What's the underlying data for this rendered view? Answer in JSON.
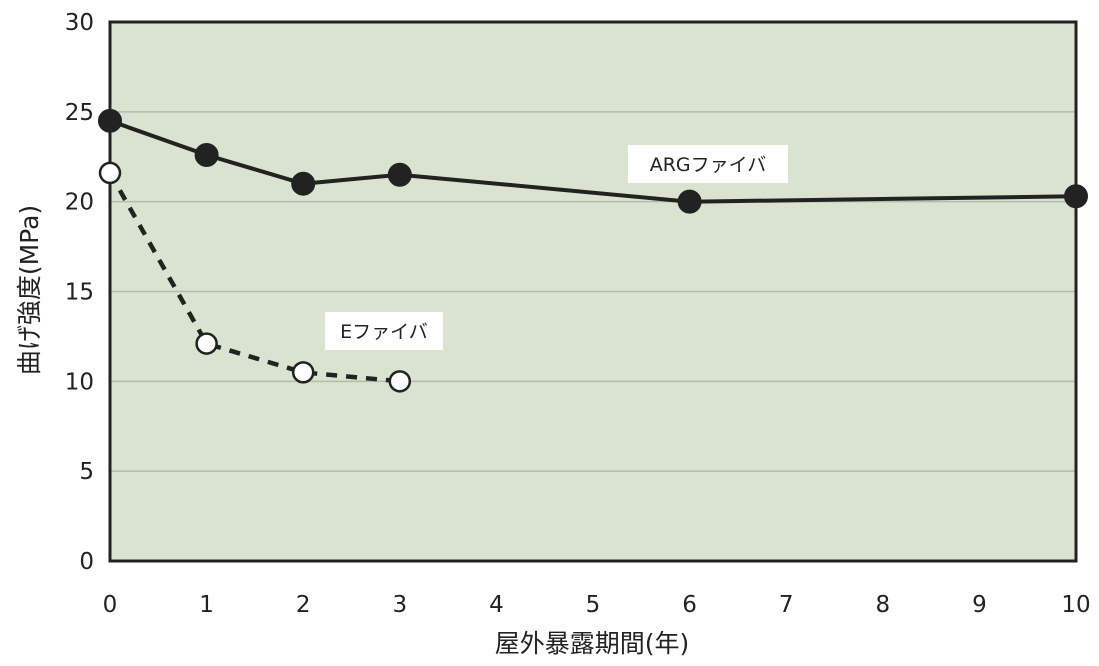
{
  "chart_data": {
    "type": "line",
    "xlabel": "屋外暴露期間(年)",
    "ylabel": "曲げ強度(MPa)",
    "xlim": [
      0,
      10
    ],
    "ylim": [
      0,
      30
    ],
    "x_ticks": [
      "0",
      "1",
      "2",
      "3",
      "4",
      "5",
      "6",
      "7",
      "8",
      "9",
      "10"
    ],
    "y_ticks": [
      "0",
      "5",
      "10",
      "15",
      "20",
      "25",
      "30"
    ],
    "grid": true,
    "colors": {
      "plot_background": "#d9e3cf",
      "grid": "#b3bba9",
      "line": "#222222"
    },
    "series": [
      {
        "name": "ARGファイバ",
        "style": "solid",
        "marker": "filled-circle",
        "points": [
          {
            "x": 0,
            "y": 24.5
          },
          {
            "x": 1,
            "y": 22.6
          },
          {
            "x": 2,
            "y": 21.0
          },
          {
            "x": 3,
            "y": 21.5
          },
          {
            "x": 6,
            "y": 20.0
          },
          {
            "x": 10,
            "y": 20.3
          }
        ]
      },
      {
        "name": "Eファイバ",
        "style": "dashed",
        "marker": "open-circle",
        "points": [
          {
            "x": 0,
            "y": 21.6
          },
          {
            "x": 1,
            "y": 12.1
          },
          {
            "x": 2,
            "y": 10.5
          },
          {
            "x": 3,
            "y": 10.0
          }
        ]
      }
    ]
  }
}
